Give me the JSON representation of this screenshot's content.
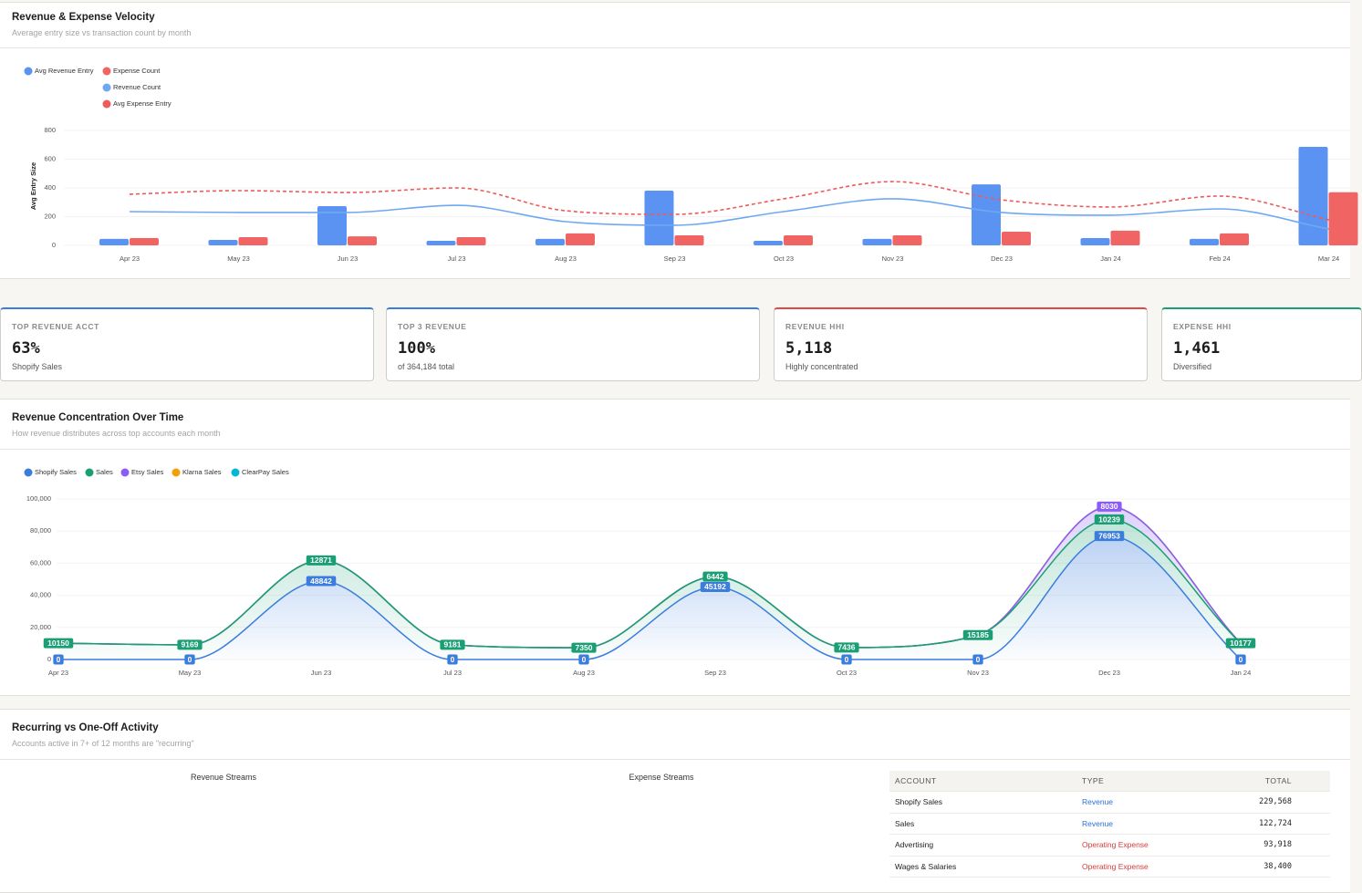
{
  "chart_data": [
    {
      "type": "bar",
      "title": "Revenue & Expense Velocity",
      "subtitle": "Average entry size vs transaction count by month",
      "y_label": "Avg Entry Size",
      "categories": [
        "Apr 23",
        "May 23",
        "Jun 23",
        "Jul 23",
        "Aug 23",
        "Sep 23",
        "Oct 23",
        "Nov 23",
        "Dec 23",
        "Jan 24",
        "Feb 24",
        "Mar 24"
      ],
      "ylim": [
        0,
        800
      ],
      "yticks": [
        0,
        200,
        400,
        600,
        800
      ],
      "grid": true,
      "series": [
        {
          "name": "Avg Revenue Entry",
          "kind": "bar",
          "color": "#5b93f3",
          "values": [
            45,
            38,
            273,
            32,
            45,
            381,
            32,
            45,
            425,
            51,
            45,
            686
          ]
        },
        {
          "name": "Expense Count",
          "kind": "bar",
          "color": "#f06464",
          "values": [
            51,
            57,
            63,
            57,
            83,
            70,
            70,
            70,
            95,
            102,
            83,
            370
          ]
        },
        {
          "name": "Revenue Count",
          "kind": "line",
          "dashed": false,
          "color": "#6fa8f2",
          "values": [
            235,
            229,
            229,
            279,
            165,
            140,
            235,
            324,
            229,
            210,
            254,
            114
          ]
        },
        {
          "name": "Avg Expense Entry",
          "kind": "line",
          "dashed": true,
          "color": "#ef5a5a",
          "values": [
            356,
            381,
            368,
            400,
            241,
            216,
            324,
            444,
            317,
            267,
            343,
            178
          ]
        }
      ]
    },
    {
      "type": "area",
      "stacked": true,
      "title": "Revenue Concentration Over Time",
      "subtitle": "How revenue distributes across top accounts each month",
      "categories": [
        "Apr 23",
        "May 23",
        "Jun 23",
        "Jul 23",
        "Aug 23",
        "Sep 23",
        "Oct 23",
        "Nov 23",
        "Dec 23",
        "Jan 24"
      ],
      "ylim": [
        0,
        100000
      ],
      "yticks": [
        0,
        {
          "value": 20000,
          "label": "20,000"
        },
        {
          "value": 40000,
          "label": "40,000"
        },
        {
          "value": 60000,
          "label": "60,000"
        },
        {
          "value": 80000,
          "label": "80,000"
        },
        {
          "value": 100000,
          "label": "100,000"
        }
      ],
      "grid": true,
      "series": [
        {
          "name": "Shopify Sales",
          "color": "#3b7ddd",
          "values": [
            0,
            0,
            48842,
            0,
            0,
            45192,
            0,
            0,
            76953,
            0
          ]
        },
        {
          "name": "Sales",
          "color": "#1a9f74",
          "values": [
            10150,
            9169,
            12871,
            9181,
            7350,
            6442,
            7436,
            15185,
            10239,
            10177
          ]
        },
        {
          "name": "Etsy Sales",
          "color": "#8b5cf6",
          "values": [
            0,
            0,
            0,
            0,
            0,
            0,
            0,
            0,
            8030,
            0
          ]
        },
        {
          "name": "Klarna Sales",
          "color": "#f59e0b",
          "values": [
            0,
            0,
            0,
            0,
            0,
            0,
            0,
            0,
            0,
            0
          ]
        },
        {
          "name": "ClearPay Sales",
          "color": "#06b6d4",
          "values": [
            0,
            0,
            0,
            0,
            0,
            0,
            0,
            0,
            0,
            0
          ]
        }
      ]
    }
  ],
  "kpis": [
    {
      "label": "TOP REVENUE ACCT",
      "value": "63%",
      "sub": "Shopify Sales",
      "color": "#3b7ddd"
    },
    {
      "label": "TOP 3 REVENUE",
      "value": "100%",
      "sub": "of 364,184 total",
      "color": "#3b7ddd"
    },
    {
      "label": "REVENUE HHI",
      "value": "5,118",
      "sub": "Highly concentrated",
      "color": "#e04848"
    },
    {
      "label": "EXPENSE HHI",
      "value": "1,461",
      "sub": "Diversified",
      "color": "#1a9f74"
    }
  ],
  "recurring": {
    "title": "Recurring vs One-Off Activity",
    "subtitle": "Accounts active in 7+ of 12 months are \"recurring\"",
    "revenue_streams": "Revenue Streams",
    "expense_streams": "Expense Streams",
    "columns": [
      "ACCOUNT",
      "TYPE",
      "TOTAL"
    ],
    "rows": [
      [
        "Shopify Sales",
        "Revenue",
        "229,568"
      ],
      [
        "Sales",
        "Revenue",
        "122,724"
      ],
      [
        "Advertising",
        "Operating Expense",
        "93,918"
      ],
      [
        "Wages & Salaries",
        "Operating Expense",
        "38,400"
      ]
    ],
    "type_colors": {
      "Revenue": "#2f6fd6",
      "Operating Expense": "#d93b3b"
    }
  }
}
